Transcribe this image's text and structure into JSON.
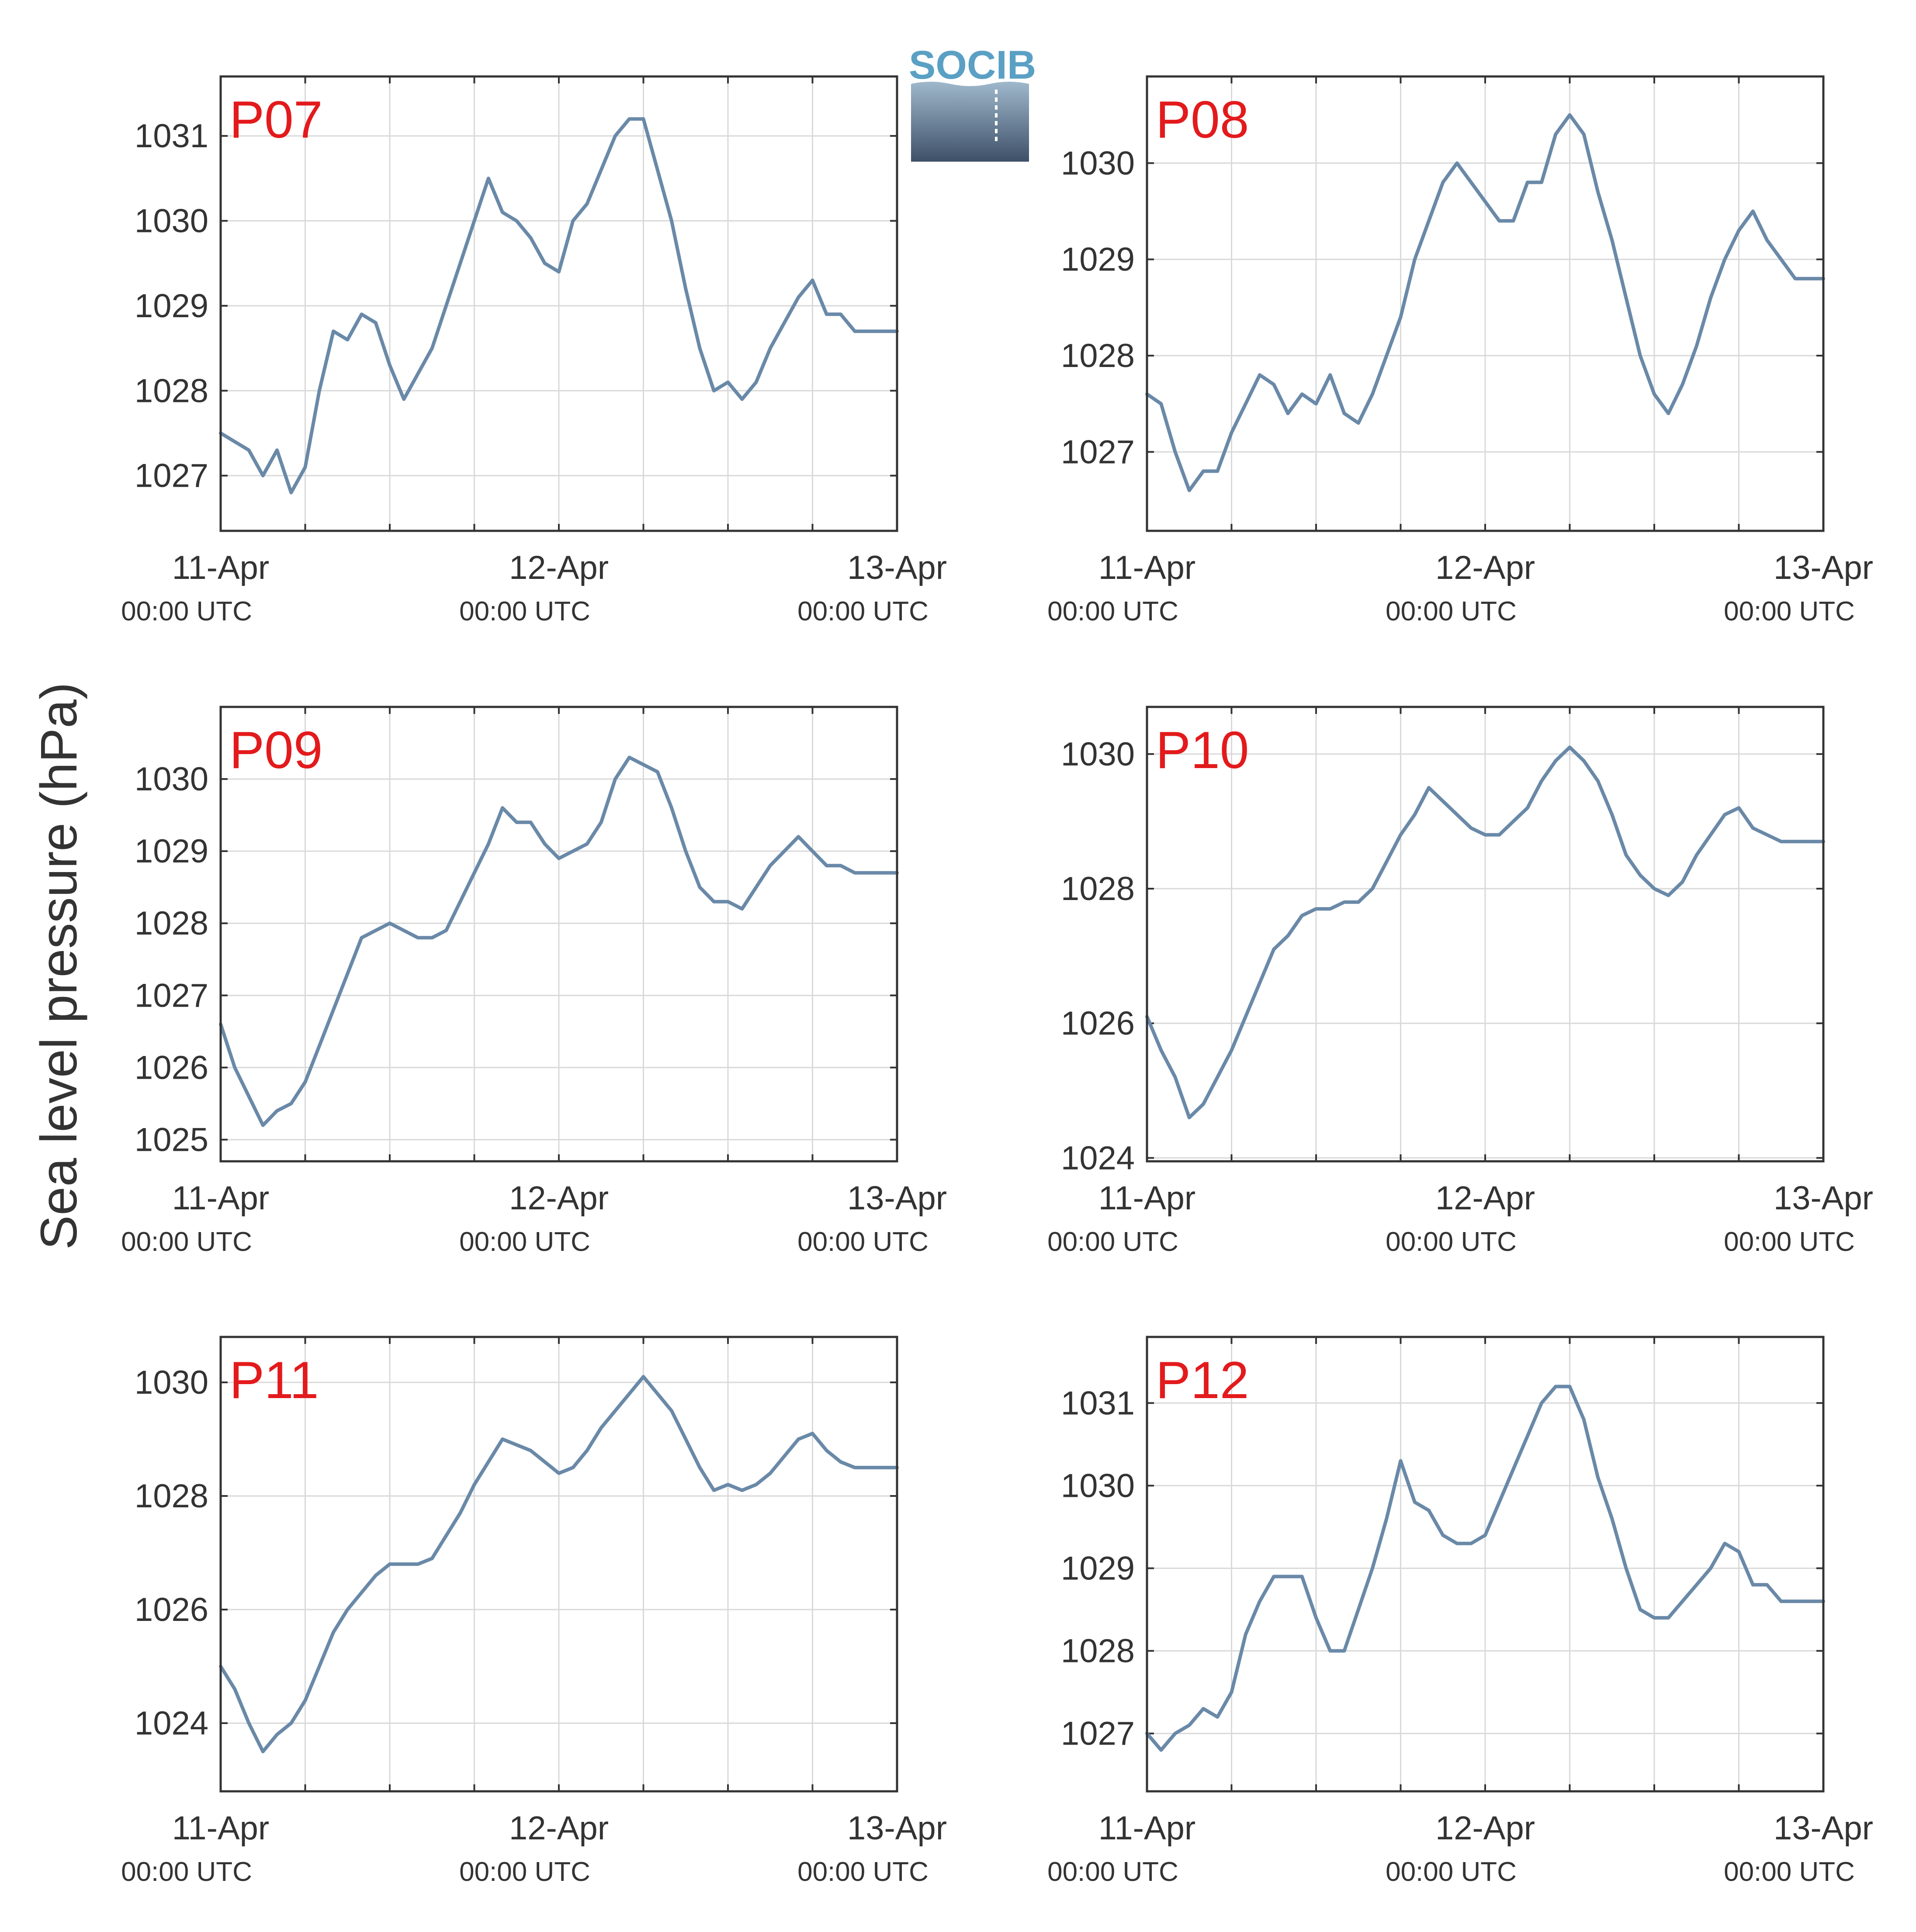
{
  "figure": {
    "ylabel": "Sea level pressure (hPa)",
    "logo_text": "SOCIB",
    "colors": {
      "series": "#6a89a8",
      "panel_title": "#e31a1c",
      "grid": "#d9d9d9",
      "axes": "#333333"
    }
  },
  "chart_data": [
    {
      "type": "line",
      "title": "P07",
      "xlabel": "",
      "ylabel": "Sea level pressure (hPa)",
      "x_ticks": [
        {
          "main": "11-Apr",
          "sub": "00:00 UTC"
        },
        {
          "main": "12-Apr",
          "sub": "00:00 UTC"
        },
        {
          "main": "13-Apr",
          "sub": "00:00 UTC"
        }
      ],
      "x_range_hours": [
        0,
        48
      ],
      "ylim": [
        1026.35,
        1031.7
      ],
      "yticks": [
        1027,
        1028,
        1029,
        1030,
        1031
      ],
      "grid": true,
      "series": [
        {
          "x_hours": [
            0,
            1,
            2,
            3,
            4,
            5,
            6,
            7,
            8,
            9,
            10,
            11,
            12,
            13,
            14,
            15,
            16,
            17,
            18,
            19,
            20,
            21,
            22,
            23,
            24,
            25,
            26,
            27,
            28,
            29,
            30,
            31,
            32,
            33,
            34,
            35,
            36,
            37,
            38,
            39,
            40,
            41,
            42,
            43,
            44,
            45,
            46,
            47,
            48
          ],
          "values": [
            1027.5,
            1027.4,
            1027.3,
            1027.0,
            1027.3,
            1026.8,
            1027.1,
            1028.0,
            1028.7,
            1028.6,
            1028.9,
            1028.8,
            1028.3,
            1027.9,
            1028.2,
            1028.5,
            1029.0,
            1029.5,
            1030.0,
            1030.5,
            1030.1,
            1030.0,
            1029.8,
            1029.5,
            1029.4,
            1030.0,
            1030.2,
            1030.6,
            1031.0,
            1031.2,
            1031.2,
            1030.6,
            1030.0,
            1029.2,
            1028.5,
            1028.0,
            1028.1,
            1027.9,
            1028.1,
            1028.5,
            1028.8,
            1029.1,
            1029.3,
            1028.9,
            1028.9,
            1028.7,
            1028.7,
            1028.7,
            1028.7
          ]
        }
      ]
    },
    {
      "type": "line",
      "title": "P08",
      "xlabel": "",
      "ylabel": "Sea level pressure (hPa)",
      "x_ticks": [
        {
          "main": "11-Apr",
          "sub": "00:00 UTC"
        },
        {
          "main": "12-Apr",
          "sub": "00:00 UTC"
        },
        {
          "main": "13-Apr",
          "sub": "00:00 UTC"
        }
      ],
      "x_range_hours": [
        0,
        48
      ],
      "ylim": [
        1026.18,
        1030.9
      ],
      "yticks": [
        1027,
        1028,
        1029,
        1030
      ],
      "grid": true,
      "series": [
        {
          "x_hours": [
            0,
            1,
            2,
            3,
            4,
            5,
            6,
            7,
            8,
            9,
            10,
            11,
            12,
            13,
            14,
            15,
            16,
            17,
            18,
            19,
            20,
            21,
            22,
            23,
            24,
            25,
            26,
            27,
            28,
            29,
            30,
            31,
            32,
            33,
            34,
            35,
            36,
            37,
            38,
            39,
            40,
            41,
            42,
            43,
            44,
            45,
            46,
            47,
            48
          ],
          "values": [
            1027.6,
            1027.5,
            1027.0,
            1026.6,
            1026.8,
            1026.8,
            1027.2,
            1027.5,
            1027.8,
            1027.7,
            1027.4,
            1027.6,
            1027.5,
            1027.8,
            1027.4,
            1027.3,
            1027.6,
            1028.0,
            1028.4,
            1029.0,
            1029.4,
            1029.8,
            1030.0,
            1029.8,
            1029.6,
            1029.4,
            1029.4,
            1029.8,
            1029.8,
            1030.3,
            1030.5,
            1030.3,
            1029.7,
            1029.2,
            1028.6,
            1028.0,
            1027.6,
            1027.4,
            1027.7,
            1028.1,
            1028.6,
            1029.0,
            1029.3,
            1029.5,
            1029.2,
            1029.0,
            1028.8,
            1028.8,
            1028.8
          ]
        }
      ]
    },
    {
      "type": "line",
      "title": "P09",
      "xlabel": "",
      "ylabel": "Sea level pressure (hPa)",
      "x_ticks": [
        {
          "main": "11-Apr",
          "sub": "00:00 UTC"
        },
        {
          "main": "12-Apr",
          "sub": "00:00 UTC"
        },
        {
          "main": "13-Apr",
          "sub": "00:00 UTC"
        }
      ],
      "x_range_hours": [
        0,
        48
      ],
      "ylim": [
        1024.7,
        1031.0
      ],
      "yticks": [
        1025,
        1026,
        1027,
        1028,
        1029,
        1030
      ],
      "grid": true,
      "series": [
        {
          "x_hours": [
            0,
            1,
            2,
            3,
            4,
            5,
            6,
            7,
            8,
            9,
            10,
            11,
            12,
            13,
            14,
            15,
            16,
            17,
            18,
            19,
            20,
            21,
            22,
            23,
            24,
            25,
            26,
            27,
            28,
            29,
            30,
            31,
            32,
            33,
            34,
            35,
            36,
            37,
            38,
            39,
            40,
            41,
            42,
            43,
            44,
            45,
            46,
            47,
            48
          ],
          "values": [
            1026.6,
            1026.0,
            1025.6,
            1025.2,
            1025.4,
            1025.5,
            1025.8,
            1026.3,
            1026.8,
            1027.3,
            1027.8,
            1027.9,
            1028.0,
            1027.9,
            1027.8,
            1027.8,
            1027.9,
            1028.3,
            1028.7,
            1029.1,
            1029.6,
            1029.4,
            1029.4,
            1029.1,
            1028.9,
            1029.0,
            1029.1,
            1029.4,
            1030.0,
            1030.3,
            1030.2,
            1030.1,
            1029.6,
            1029.0,
            1028.5,
            1028.3,
            1028.3,
            1028.2,
            1028.5,
            1028.8,
            1029.0,
            1029.2,
            1029.0,
            1028.8,
            1028.8,
            1028.7,
            1028.7,
            1028.7,
            1028.7
          ]
        }
      ]
    },
    {
      "type": "line",
      "title": "P10",
      "xlabel": "",
      "ylabel": "Sea level pressure (hPa)",
      "x_ticks": [
        {
          "main": "11-Apr",
          "sub": "00:00 UTC"
        },
        {
          "main": "12-Apr",
          "sub": "00:00 UTC"
        },
        {
          "main": "13-Apr",
          "sub": "00:00 UTC"
        }
      ],
      "x_range_hours": [
        0,
        48
      ],
      "ylim": [
        1023.95,
        1030.7
      ],
      "yticks": [
        1024,
        1026,
        1028,
        1030
      ],
      "grid": true,
      "series": [
        {
          "x_hours": [
            0,
            1,
            2,
            3,
            4,
            5,
            6,
            7,
            8,
            9,
            10,
            11,
            12,
            13,
            14,
            15,
            16,
            17,
            18,
            19,
            20,
            21,
            22,
            23,
            24,
            25,
            26,
            27,
            28,
            29,
            30,
            31,
            32,
            33,
            34,
            35,
            36,
            37,
            38,
            39,
            40,
            41,
            42,
            43,
            44,
            45,
            46,
            47,
            48
          ],
          "values": [
            1026.1,
            1025.6,
            1025.2,
            1024.6,
            1024.8,
            1025.2,
            1025.6,
            1026.1,
            1026.6,
            1027.1,
            1027.3,
            1027.6,
            1027.7,
            1027.7,
            1027.8,
            1027.8,
            1028.0,
            1028.4,
            1028.8,
            1029.1,
            1029.5,
            1029.3,
            1029.1,
            1028.9,
            1028.8,
            1028.8,
            1029.0,
            1029.2,
            1029.6,
            1029.9,
            1030.1,
            1029.9,
            1029.6,
            1029.1,
            1028.5,
            1028.2,
            1028.0,
            1027.9,
            1028.1,
            1028.5,
            1028.8,
            1029.1,
            1029.2,
            1028.9,
            1028.8,
            1028.7,
            1028.7,
            1028.7,
            1028.7
          ]
        }
      ]
    },
    {
      "type": "line",
      "title": "P11",
      "xlabel": "",
      "ylabel": "Sea level pressure (hPa)",
      "x_ticks": [
        {
          "main": "11-Apr",
          "sub": "00:00 UTC"
        },
        {
          "main": "12-Apr",
          "sub": "00:00 UTC"
        },
        {
          "main": "13-Apr",
          "sub": "00:00 UTC"
        }
      ],
      "x_range_hours": [
        0,
        48
      ],
      "ylim": [
        1022.8,
        1030.8
      ],
      "yticks": [
        1024,
        1026,
        1028,
        1030
      ],
      "grid": true,
      "series": [
        {
          "x_hours": [
            0,
            1,
            2,
            3,
            4,
            5,
            6,
            7,
            8,
            9,
            10,
            11,
            12,
            13,
            14,
            15,
            16,
            17,
            18,
            19,
            20,
            21,
            22,
            23,
            24,
            25,
            26,
            27,
            28,
            29,
            30,
            31,
            32,
            33,
            34,
            35,
            36,
            37,
            38,
            39,
            40,
            41,
            42,
            43,
            44,
            45,
            46,
            47,
            48
          ],
          "values": [
            1025.0,
            1024.6,
            1024.0,
            1023.5,
            1023.8,
            1024.0,
            1024.4,
            1025.0,
            1025.6,
            1026.0,
            1026.3,
            1026.6,
            1026.8,
            1026.8,
            1026.8,
            1026.9,
            1027.3,
            1027.7,
            1028.2,
            1028.6,
            1029.0,
            1028.9,
            1028.8,
            1028.6,
            1028.4,
            1028.5,
            1028.8,
            1029.2,
            1029.5,
            1029.8,
            1030.1,
            1029.8,
            1029.5,
            1029.0,
            1028.5,
            1028.1,
            1028.2,
            1028.1,
            1028.2,
            1028.4,
            1028.7,
            1029.0,
            1029.1,
            1028.8,
            1028.6,
            1028.5,
            1028.5,
            1028.5,
            1028.5
          ]
        }
      ]
    },
    {
      "type": "line",
      "title": "P12",
      "xlabel": "",
      "ylabel": "Sea level pressure (hPa)",
      "x_ticks": [
        {
          "main": "11-Apr",
          "sub": "00:00 UTC"
        },
        {
          "main": "12-Apr",
          "sub": "00:00 UTC"
        },
        {
          "main": "13-Apr",
          "sub": "00:00 UTC"
        }
      ],
      "x_range_hours": [
        0,
        48
      ],
      "ylim": [
        1026.3,
        1031.8
      ],
      "yticks": [
        1027,
        1028,
        1029,
        1030,
        1031
      ],
      "grid": true,
      "series": [
        {
          "x_hours": [
            0,
            1,
            2,
            3,
            4,
            5,
            6,
            7,
            8,
            9,
            10,
            11,
            12,
            13,
            14,
            15,
            16,
            17,
            18,
            19,
            20,
            21,
            22,
            23,
            24,
            25,
            26,
            27,
            28,
            29,
            30,
            31,
            32,
            33,
            34,
            35,
            36,
            37,
            38,
            39,
            40,
            41,
            42,
            43,
            44,
            45,
            46,
            47,
            48
          ],
          "values": [
            1027.0,
            1026.8,
            1027.0,
            1027.1,
            1027.3,
            1027.2,
            1027.5,
            1028.2,
            1028.6,
            1028.9,
            1028.9,
            1028.9,
            1028.4,
            1028.0,
            1028.0,
            1028.5,
            1029.0,
            1029.6,
            1030.3,
            1029.8,
            1029.7,
            1029.4,
            1029.3,
            1029.3,
            1029.4,
            1029.8,
            1030.2,
            1030.6,
            1031.0,
            1031.2,
            1031.2,
            1030.8,
            1030.1,
            1029.6,
            1029.0,
            1028.5,
            1028.4,
            1028.4,
            1028.6,
            1028.8,
            1029.0,
            1029.3,
            1029.2,
            1028.8,
            1028.8,
            1028.6,
            1028.6,
            1028.6,
            1028.6
          ]
        }
      ]
    }
  ]
}
